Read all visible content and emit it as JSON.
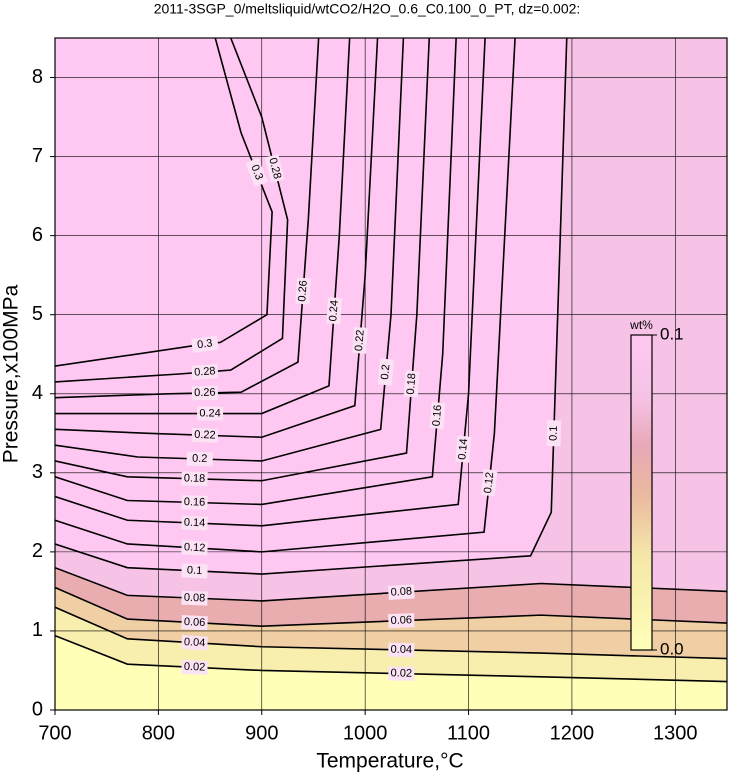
{
  "chart_data": {
    "type": "contour",
    "title": "2011-3SGP_0/meltsliquid/wtCO2/H2O_0.6_C0.100_0_PT, dz=0.002:",
    "x_label": "Temperature,°C",
    "y_label": "Pressure,x100MPa",
    "xlim": [
      700,
      1350
    ],
    "ylim": [
      0,
      8.5
    ],
    "xticks": [
      700,
      800,
      900,
      1000,
      1100,
      1200,
      1300
    ],
    "yticks": [
      0,
      1,
      2,
      3,
      4,
      5,
      6,
      7,
      8
    ],
    "grid": true,
    "line_color": "#000000",
    "colormap": [
      [
        0,
        "#ffffb8"
      ],
      [
        0.03,
        "#f5e6a8"
      ],
      [
        0.05,
        "#eab8a0"
      ],
      [
        0.065,
        "#e8a8b8"
      ],
      [
        0.08,
        "#f6c2e6"
      ],
      [
        0.1,
        "#ffc8f2"
      ]
    ],
    "colorbar": {
      "label": "wt%",
      "lim": [
        0,
        0.1
      ],
      "ticks": [
        {
          "value": 0,
          "label": "0.0"
        },
        0.1
      ]
    },
    "contours": [
      {
        "level": 0.02,
        "x": [
          700,
          770,
          900,
          1170,
          1350
        ],
        "y": [
          0.94,
          0.58,
          0.5,
          0.42,
          0.36
        ]
      },
      {
        "level": 0.04,
        "x": [
          700,
          770,
          900,
          1170,
          1350
        ],
        "y": [
          1.3,
          0.9,
          0.8,
          0.72,
          0.65
        ]
      },
      {
        "level": 0.06,
        "x": [
          700,
          770,
          900,
          1170,
          1350
        ],
        "y": [
          1.55,
          1.15,
          1.06,
          1.2,
          1.1
        ]
      },
      {
        "level": 0.08,
        "x": [
          700,
          770,
          900,
          1170,
          1350
        ],
        "y": [
          1.8,
          1.45,
          1.38,
          1.6,
          1.5
        ]
      },
      {
        "level": 0.1,
        "x": [
          700,
          770,
          900,
          1160,
          1180,
          1185,
          1195
        ],
        "y": [
          2.1,
          1.8,
          1.72,
          1.95,
          2.5,
          4.5,
          8.5
        ]
      },
      {
        "level": 0.12,
        "x": [
          700,
          770,
          900,
          1115,
          1125,
          1145
        ],
        "y": [
          2.4,
          2.1,
          2.0,
          2.25,
          3.5,
          8.5
        ]
      },
      {
        "level": 0.14,
        "x": [
          700,
          770,
          900,
          1090,
          1100,
          1116
        ],
        "y": [
          2.7,
          2.4,
          2.33,
          2.6,
          4,
          8.5
        ]
      },
      {
        "level": 0.16,
        "x": [
          700,
          770,
          900,
          1065,
          1075,
          1088
        ],
        "y": [
          2.95,
          2.65,
          2.6,
          2.95,
          4.5,
          8.5
        ]
      },
      {
        "level": 0.18,
        "x": [
          700,
          770,
          900,
          1040,
          1050,
          1062
        ],
        "y": [
          3.15,
          2.95,
          2.9,
          3.25,
          5,
          8.5
        ]
      },
      {
        "level": 0.2,
        "x": [
          700,
          780,
          900,
          1015,
          1025,
          1037
        ],
        "y": [
          3.35,
          3.2,
          3.15,
          3.55,
          5,
          8.5
        ]
      },
      {
        "level": 0.22,
        "x": [
          700,
          790,
          900,
          990,
          1000,
          1012
        ],
        "y": [
          3.55,
          3.5,
          3.45,
          3.85,
          5.5,
          8.5
        ]
      },
      {
        "level": 0.24,
        "x": [
          700,
          800,
          900,
          965,
          975,
          985
        ],
        "y": [
          3.75,
          3.75,
          3.75,
          4.1,
          6,
          8.5
        ]
      },
      {
        "level": 0.26,
        "x": [
          700,
          810,
          880,
          935,
          945,
          955
        ],
        "y": [
          3.95,
          4.0,
          4.02,
          4.4,
          6.2,
          8.5
        ]
      },
      {
        "level": 0.28,
        "x": [
          700,
          820,
          870,
          920,
          925,
          900,
          870
        ],
        "y": [
          4.15,
          4.25,
          4.3,
          4.7,
          6.2,
          7.5,
          8.5
        ]
      },
      {
        "level": 0.3,
        "x": [
          700,
          830,
          860,
          905,
          910,
          880,
          855
        ],
        "y": [
          4.35,
          4.6,
          4.65,
          5.0,
          6.3,
          7.3,
          8.5
        ]
      }
    ]
  }
}
